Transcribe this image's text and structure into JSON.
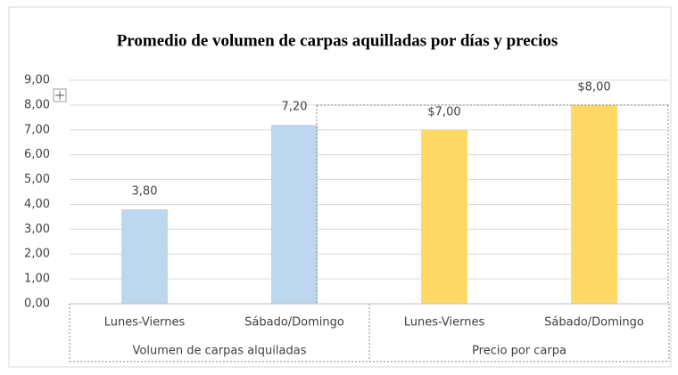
{
  "chart_data": {
    "type": "bar",
    "title": "Promedio de volumen de carpas aquilladas por días y precios",
    "groups": [
      {
        "name": "Volumen de carpas alquiladas",
        "categories": [
          "Lunes-Viernes",
          "Sábado/Domingo"
        ],
        "values": [
          3.8,
          7.2
        ],
        "value_labels": [
          "3,80",
          "7,20"
        ],
        "color": "#bdd7ee"
      },
      {
        "name": "Precio por carpa",
        "categories": [
          "Lunes-Viernes",
          "Sábado/Domingo"
        ],
        "values": [
          7,
          8
        ],
        "value_labels": [
          "$7,00",
          "$8,00"
        ],
        "color": "#ffd966"
      }
    ],
    "ylim": [
      0,
      9
    ],
    "yticks": [
      {
        "value": 0,
        "label": "0,00"
      },
      {
        "value": 1,
        "label": "1,00"
      },
      {
        "value": 2,
        "label": "2,00"
      },
      {
        "value": 3,
        "label": "3,00"
      },
      {
        "value": 4,
        "label": "4,00"
      },
      {
        "value": 5,
        "label": "5,00"
      },
      {
        "value": 6,
        "label": "6,00"
      },
      {
        "value": 7,
        "label": "7,00"
      },
      {
        "value": 8,
        "label": "8,00"
      },
      {
        "value": 9,
        "label": "9,00"
      }
    ],
    "grid": true
  }
}
